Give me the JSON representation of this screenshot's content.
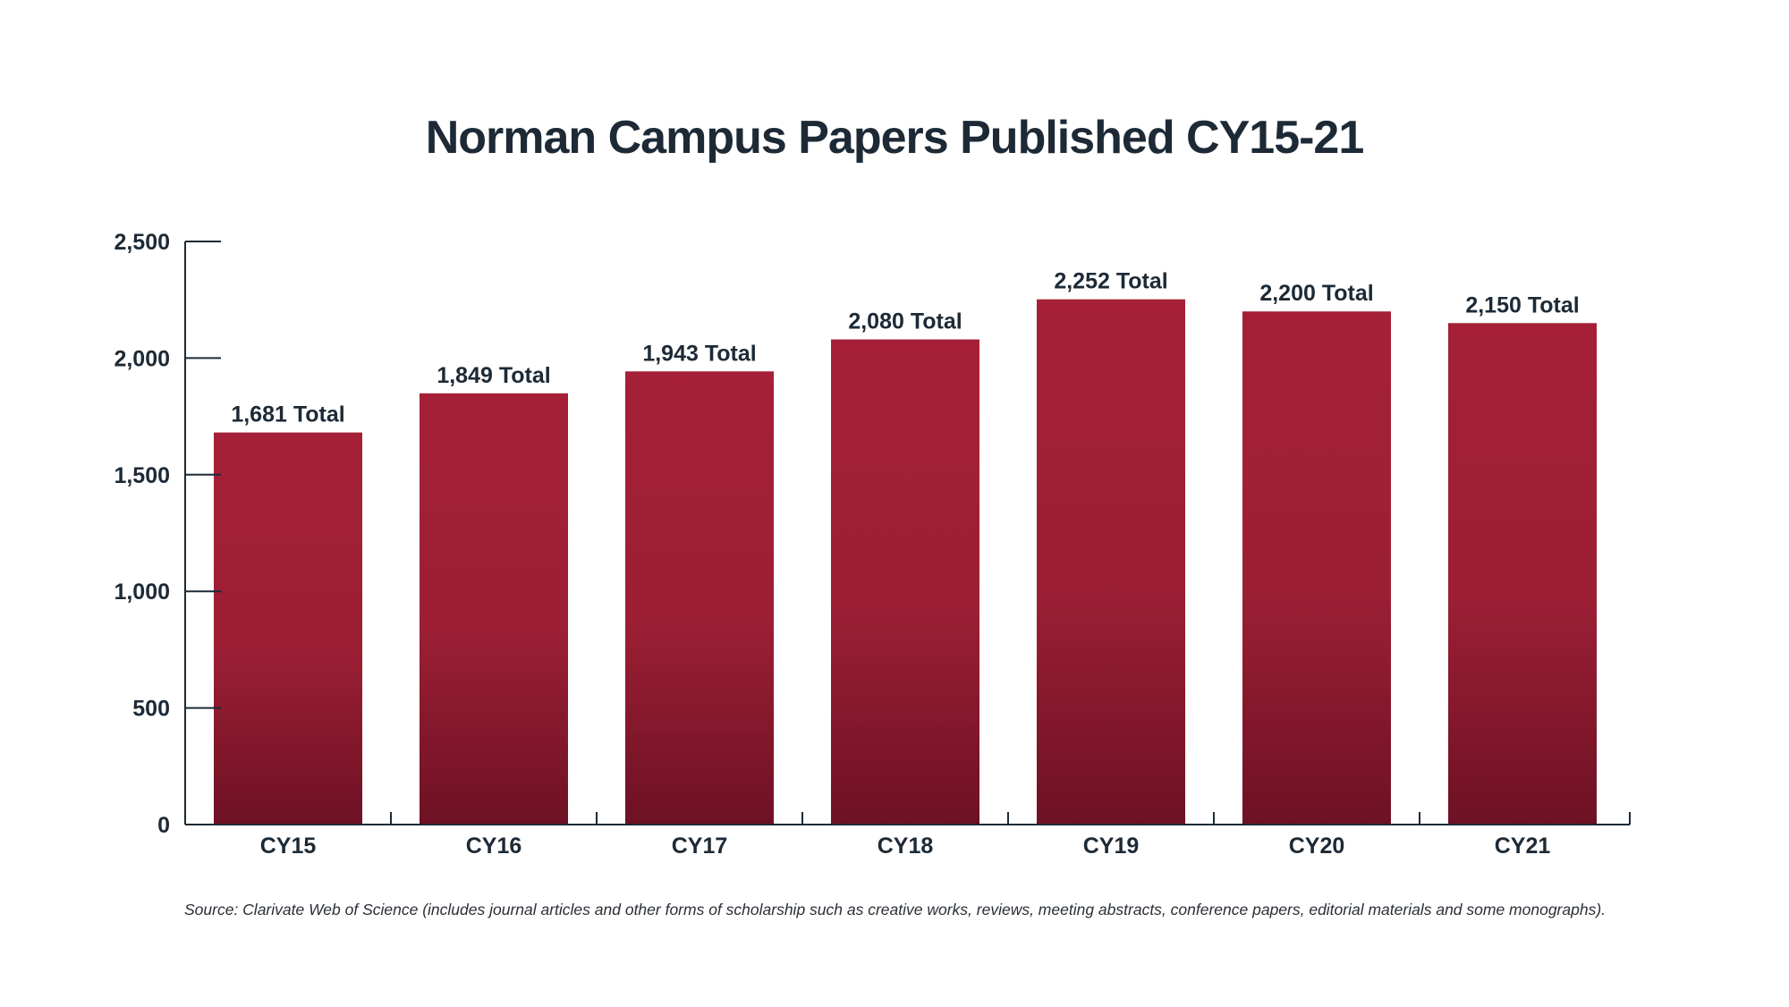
{
  "chart_data": {
    "type": "bar",
    "title": "Norman Campus Papers Published CY15-21",
    "xlabel": "",
    "ylabel": "",
    "categories": [
      "CY15",
      "CY16",
      "CY17",
      "CY18",
      "CY19",
      "CY20",
      "CY21"
    ],
    "values": [
      1681,
      1849,
      1943,
      2080,
      2252,
      2200,
      2150
    ],
    "data_labels": [
      "1,681 Total",
      "1,849 Total",
      "1,943 Total",
      "2,080 Total",
      "2,252 Total",
      "2,200 Total",
      "2,150 Total"
    ],
    "y_ticks": [
      0,
      500,
      1000,
      1500,
      2000,
      2500
    ],
    "y_tick_labels": [
      "0",
      "500",
      "1,000",
      "1,500",
      "2,000",
      "2,500"
    ],
    "ylim": [
      0,
      2500
    ],
    "grid": false,
    "legend": "none",
    "bar_color_top": "#a52036",
    "bar_color_bottom": "#6e1124",
    "axis_color": "#1d2a36",
    "text_color": "#1d2a36"
  },
  "source_note": "Source: Clarivate Web of Science (includes journal articles and other forms of scholarship such as creative works, reviews, meeting abstracts, conference papers, editorial materials and some monographs)."
}
